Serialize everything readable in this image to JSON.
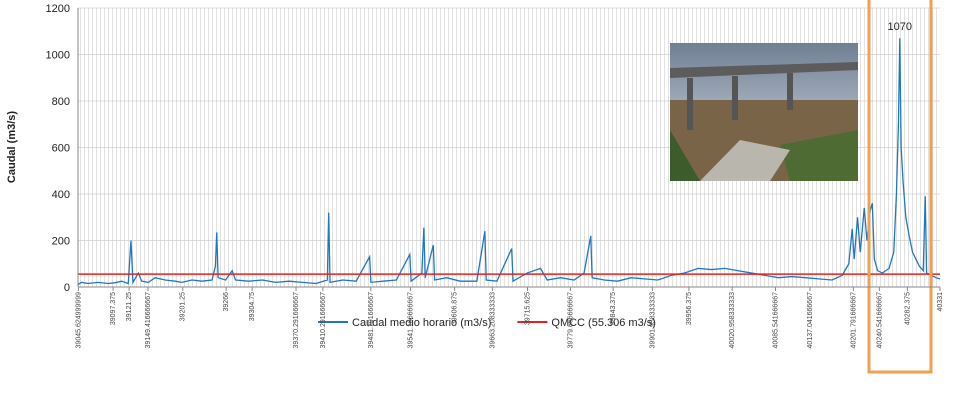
{
  "chart_data": {
    "type": "line",
    "y_label": "Caudal  (m3/s)",
    "xlim": [
      39045,
      40331
    ],
    "ylim": [
      0,
      1200
    ],
    "yticks": [
      0,
      200,
      400,
      600,
      800,
      1000,
      1200
    ],
    "xticks": [
      {
        "value": 39045.625,
        "label": "39045.624999999"
      },
      {
        "value": 39097.375,
        "label": "39097.375"
      },
      {
        "value": 39121.25,
        "label": "39121.25"
      },
      {
        "value": 39149.416666667,
        "label": "39149.416666667"
      },
      {
        "value": 39201.25,
        "label": "39201.25"
      },
      {
        "value": 39266,
        "label": "39266"
      },
      {
        "value": 39304.75,
        "label": "39304.75"
      },
      {
        "value": 39370.291666667,
        "label": "39370.291666667"
      },
      {
        "value": 39410.291666667,
        "label": "39410.291666667"
      },
      {
        "value": 39481.791666667,
        "label": "39481.791666667"
      },
      {
        "value": 39541.166666667,
        "label": "39541.166666667"
      },
      {
        "value": 39606.875,
        "label": "39606.875"
      },
      {
        "value": 39663.208333333,
        "label": "39663.208333333"
      },
      {
        "value": 39715.625,
        "label": "39715.625"
      },
      {
        "value": 39779.666666667,
        "label": "39779.666666667"
      },
      {
        "value": 39843.375,
        "label": "39843.375"
      },
      {
        "value": 39901.958333333,
        "label": "39901.958333333"
      },
      {
        "value": 39956.375,
        "label": "39956.375"
      },
      {
        "value": 40020.958333333,
        "label": "40020.958333333"
      },
      {
        "value": 40085.541666667,
        "label": "40085.541666667"
      },
      {
        "value": 40137.041666667,
        "label": "40137.041666667"
      },
      {
        "value": 40201.791666667,
        "label": "40201.791666667"
      },
      {
        "value": 40240.541666667,
        "label": "40240.541666667"
      },
      {
        "value": 40282.375,
        "label": "40282.375"
      },
      {
        "value": 40331,
        "label": "40331"
      }
    ],
    "x": [
      39045,
      39050,
      39060,
      39075,
      39090,
      39100,
      39110,
      39120,
      39124,
      39127,
      39135,
      39140,
      39150,
      39160,
      39175,
      39190,
      39200,
      39215,
      39230,
      39245,
      39250,
      39252,
      39254,
      39265,
      39275,
      39280,
      39300,
      39320,
      39340,
      39360,
      39380,
      39400,
      39417,
      39419,
      39421,
      39440,
      39460,
      39480,
      39482,
      39500,
      39520,
      39540,
      39542,
      39558,
      39561,
      39563,
      39575,
      39577,
      39595,
      39615,
      39640,
      39652,
      39654,
      39670,
      39692,
      39694,
      39715,
      39735,
      39745,
      39765,
      39785,
      39800,
      39810,
      39812,
      39830,
      39850,
      39870,
      39890,
      39910,
      39930,
      39950,
      39970,
      39990,
      40010,
      40030,
      40050,
      40070,
      40090,
      40110,
      40130,
      40150,
      40170,
      40185,
      40195,
      40200,
      40203,
      40208,
      40212,
      40218,
      40222,
      40227,
      40230,
      40233,
      40238,
      40245,
      40255,
      40262,
      40266,
      40269,
      40271,
      40273,
      40276,
      40280,
      40285,
      40290,
      40300,
      40306,
      40309,
      40311,
      40318,
      40325,
      40331
    ],
    "series": [
      {
        "name": "Caudal medio horario (m3/s)",
        "color": "#1f77c4",
        "values": [
          10,
          20,
          15,
          20,
          15,
          18,
          25,
          15,
          200,
          20,
          60,
          25,
          20,
          40,
          30,
          25,
          20,
          30,
          25,
          30,
          90,
          235,
          40,
          30,
          70,
          30,
          25,
          30,
          20,
          25,
          20,
          15,
          30,
          320,
          20,
          30,
          25,
          130,
          20,
          25,
          30,
          140,
          25,
          60,
          255,
          40,
          180,
          30,
          40,
          25,
          25,
          240,
          30,
          25,
          165,
          25,
          60,
          80,
          30,
          40,
          30,
          60,
          220,
          40,
          30,
          25,
          40,
          35,
          30,
          50,
          60,
          80,
          75,
          80,
          70,
          60,
          50,
          40,
          45,
          40,
          35,
          30,
          50,
          100,
          250,
          120,
          300,
          150,
          340,
          200,
          330,
          360,
          120,
          70,
          60,
          80,
          150,
          400,
          700,
          1070,
          600,
          450,
          300,
          220,
          150,
          90,
          70,
          390,
          60,
          50,
          40,
          35
        ]
      }
    ],
    "hline": {
      "name": "QMCC (55.306 m3/s)",
      "value": 55.306,
      "color": "#e8201a"
    },
    "annotations": [
      {
        "text": "1070",
        "x": 40271,
        "y": 1070
      }
    ]
  }
}
